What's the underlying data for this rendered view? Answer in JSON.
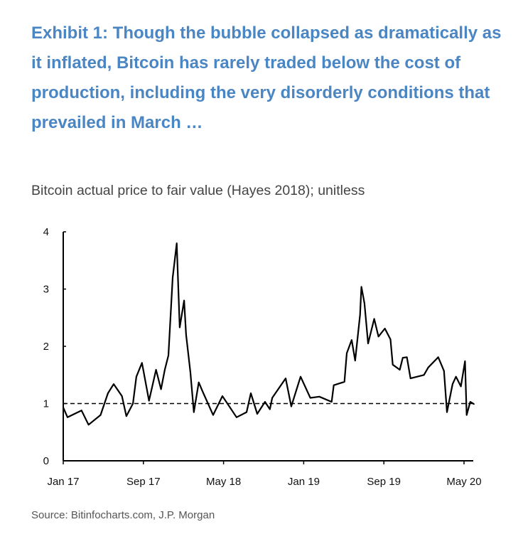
{
  "chart_data": {
    "type": "line",
    "title": "Exhibit 1: Though the bubble collapsed as dramatically as it inflated, Bitcoin has rarely traded below the cost of production, including the very disorderly conditions that prevailed in March …",
    "subtitle": "Bitcoin actual price to fair value (Hayes 2018); unitless",
    "source": "Source: Bitinfocharts.com, J.P. Morgan",
    "xlabel": "",
    "ylabel": "",
    "ylim": [
      0,
      4
    ],
    "xlim": [
      "2017-01-01",
      "2020-06-01"
    ],
    "y_ticks": [
      "0",
      "1",
      "2",
      "3",
      "4"
    ],
    "x_ticks": [
      {
        "label": "Jan 17",
        "date": "2017-01-01"
      },
      {
        "label": "Sep 17",
        "date": "2017-09-01"
      },
      {
        "label": "May 18",
        "date": "2018-05-01"
      },
      {
        "label": "Jan 19",
        "date": "2019-01-01"
      },
      {
        "label": "Sep 19",
        "date": "2019-09-01"
      },
      {
        "label": "May 20",
        "date": "2020-05-01"
      }
    ],
    "grid": false,
    "reference_line": {
      "y": 1,
      "style": "dashed"
    },
    "line_color": "#000000",
    "series": [
      {
        "x": [
          "2017-01-01",
          "2017-01-14",
          "2017-02-26",
          "2017-03-17",
          "2017-04-23",
          "2017-05-15",
          "2017-06-02",
          "2017-06-27",
          "2017-07-10",
          "2017-07-30",
          "2017-08-10",
          "2017-08-27",
          "2017-09-18",
          "2017-10-09",
          "2017-10-24",
          "2017-11-05",
          "2017-11-16",
          "2017-11-29",
          "2017-12-11",
          "2017-12-20",
          "2018-01-03",
          "2018-01-09",
          "2018-01-22",
          "2018-02-02",
          "2018-02-17",
          "2018-02-28",
          "2018-03-30",
          "2018-04-28",
          "2018-06-10",
          "2018-07-10",
          "2018-07-23",
          "2018-08-12",
          "2018-09-05",
          "2018-09-20",
          "2018-09-27",
          "2018-11-07",
          "2018-11-24",
          "2018-12-22",
          "2019-01-21",
          "2019-02-18",
          "2019-03-25",
          "2019-04-01",
          "2019-05-03",
          "2019-05-10",
          "2019-05-25",
          "2019-06-05",
          "2019-06-20",
          "2019-06-24",
          "2019-07-03",
          "2019-07-14",
          "2019-08-02",
          "2019-08-15",
          "2019-09-04",
          "2019-09-21",
          "2019-09-28",
          "2019-10-19",
          "2019-10-28",
          "2019-11-10",
          "2019-11-21",
          "2020-01-01",
          "2020-01-14",
          "2020-02-14",
          "2020-03-01",
          "2020-03-10",
          "2020-03-27",
          "2020-04-07",
          "2020-04-22",
          "2020-05-04",
          "2020-05-09",
          "2020-05-20",
          "2020-06-01"
        ],
        "y": [
          0.93,
          0.76,
          0.88,
          0.63,
          0.8,
          1.18,
          1.34,
          1.13,
          0.78,
          1.0,
          1.47,
          1.71,
          1.05,
          1.59,
          1.25,
          1.59,
          1.84,
          3.2,
          3.8,
          2.33,
          2.8,
          2.2,
          1.55,
          0.85,
          1.37,
          1.22,
          0.8,
          1.13,
          0.76,
          0.85,
          1.18,
          0.82,
          1.03,
          0.9,
          1.1,
          1.44,
          0.95,
          1.47,
          1.1,
          1.12,
          1.03,
          1.32,
          1.38,
          1.88,
          2.11,
          1.75,
          2.55,
          3.04,
          2.75,
          2.05,
          2.48,
          2.17,
          2.31,
          2.12,
          1.68,
          1.59,
          1.8,
          1.81,
          1.44,
          1.5,
          1.63,
          1.81,
          1.57,
          0.85,
          1.34,
          1.47,
          1.3,
          1.74,
          0.8,
          1.03,
          0.99
        ]
      }
    ]
  }
}
